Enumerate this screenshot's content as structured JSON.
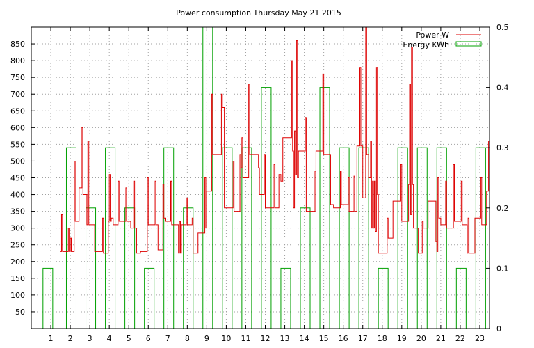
{
  "chart_data": {
    "type": "line",
    "title": "Power consumption Thursday May 21 2015",
    "x": {
      "ticks": [
        1,
        2,
        3,
        4,
        5,
        6,
        7,
        8,
        9,
        10,
        11,
        12,
        13,
        14,
        15,
        16,
        17,
        18,
        19,
        20,
        21,
        22,
        23
      ],
      "range": [
        0,
        23.5
      ]
    },
    "y_left": {
      "ticks": [
        50,
        100,
        150,
        200,
        250,
        300,
        350,
        400,
        450,
        500,
        550,
        600,
        650,
        700,
        750,
        800,
        850
      ],
      "range": [
        0,
        900
      ]
    },
    "y_right": {
      "ticks": [
        "0",
        "0.1",
        "0.2",
        "0.3",
        "0.4",
        "0.5"
      ],
      "range": [
        0,
        0.5
      ]
    },
    "grid": true,
    "legend_position": "top-right",
    "series": [
      {
        "name": "Power W",
        "color": "#dd0000",
        "axis": "left",
        "style": "steps",
        "points": [
          [
            1.5,
            230
          ],
          [
            1.55,
            340
          ],
          [
            1.6,
            230
          ],
          [
            1.85,
            230
          ],
          [
            1.9,
            300
          ],
          [
            1.95,
            230
          ],
          [
            2.0,
            270
          ],
          [
            2.05,
            230
          ],
          [
            2.15,
            230
          ],
          [
            2.2,
            500
          ],
          [
            2.25,
            320
          ],
          [
            2.4,
            320
          ],
          [
            2.45,
            420
          ],
          [
            2.55,
            420
          ],
          [
            2.6,
            600
          ],
          [
            2.65,
            400
          ],
          [
            2.8,
            400
          ],
          [
            2.85,
            310
          ],
          [
            2.9,
            560
          ],
          [
            2.95,
            310
          ],
          [
            3.2,
            310
          ],
          [
            3.25,
            230
          ],
          [
            3.6,
            230
          ],
          [
            3.65,
            330
          ],
          [
            3.7,
            225
          ],
          [
            3.9,
            225
          ],
          [
            3.95,
            320
          ],
          [
            4.0,
            460
          ],
          [
            4.05,
            320
          ],
          [
            4.1,
            330
          ],
          [
            4.2,
            310
          ],
          [
            4.4,
            310
          ],
          [
            4.45,
            440
          ],
          [
            4.5,
            320
          ],
          [
            4.8,
            320
          ],
          [
            4.85,
            420
          ],
          [
            4.9,
            320
          ],
          [
            5.0,
            320
          ],
          [
            5.1,
            300
          ],
          [
            5.2,
            300
          ],
          [
            5.25,
            440
          ],
          [
            5.3,
            300
          ],
          [
            5.4,
            225
          ],
          [
            5.5,
            225
          ],
          [
            5.6,
            230
          ],
          [
            5.9,
            230
          ],
          [
            5.95,
            450
          ],
          [
            6.0,
            310
          ],
          [
            6.3,
            310
          ],
          [
            6.35,
            440
          ],
          [
            6.4,
            310
          ],
          [
            6.5,
            235
          ],
          [
            6.6,
            235
          ],
          [
            6.7,
            235
          ],
          [
            6.75,
            430
          ],
          [
            6.8,
            330
          ],
          [
            6.9,
            320
          ],
          [
            7.1,
            320
          ],
          [
            7.15,
            440
          ],
          [
            7.2,
            310
          ],
          [
            7.5,
            310
          ],
          [
            7.55,
            225
          ],
          [
            7.6,
            320
          ],
          [
            7.65,
            225
          ],
          [
            7.7,
            310
          ],
          [
            7.9,
            310
          ],
          [
            7.95,
            390
          ],
          [
            8.0,
            310
          ],
          [
            8.2,
            310
          ],
          [
            8.25,
            330
          ],
          [
            8.3,
            225
          ],
          [
            8.5,
            225
          ],
          [
            8.55,
            285
          ],
          [
            8.85,
            285
          ],
          [
            8.9,
            450
          ],
          [
            8.95,
            300
          ],
          [
            9.0,
            410
          ],
          [
            9.2,
            410
          ],
          [
            9.25,
            700
          ],
          [
            9.3,
            520
          ],
          [
            9.7,
            520
          ],
          [
            9.75,
            700
          ],
          [
            9.8,
            660
          ],
          [
            9.9,
            360
          ],
          [
            10.3,
            360
          ],
          [
            10.35,
            500
          ],
          [
            10.4,
            350
          ],
          [
            10.65,
            350
          ],
          [
            10.7,
            520
          ],
          [
            10.75,
            480
          ],
          [
            10.8,
            570
          ],
          [
            10.85,
            450
          ],
          [
            11.1,
            450
          ],
          [
            11.15,
            730
          ],
          [
            11.2,
            520
          ],
          [
            11.6,
            520
          ],
          [
            11.65,
            480
          ],
          [
            11.7,
            400
          ],
          [
            11.9,
            400
          ],
          [
            11.95,
            520
          ],
          [
            12.0,
            360
          ],
          [
            12.4,
            360
          ],
          [
            12.45,
            490
          ],
          [
            12.5,
            360
          ],
          [
            12.65,
            360
          ],
          [
            12.7,
            460
          ],
          [
            12.8,
            440
          ],
          [
            12.9,
            570
          ],
          [
            13.3,
            570
          ],
          [
            13.35,
            800
          ],
          [
            13.4,
            530
          ],
          [
            13.45,
            360
          ],
          [
            13.5,
            590
          ],
          [
            13.55,
            460
          ],
          [
            13.6,
            860
          ],
          [
            13.65,
            450
          ],
          [
            13.7,
            530
          ],
          [
            14.0,
            530
          ],
          [
            14.05,
            630
          ],
          [
            14.1,
            350
          ],
          [
            14.5,
            350
          ],
          [
            14.55,
            470
          ],
          [
            14.6,
            530
          ],
          [
            14.9,
            530
          ],
          [
            14.95,
            760
          ],
          [
            15.0,
            520
          ],
          [
            15.3,
            520
          ],
          [
            15.35,
            370
          ],
          [
            15.5,
            360
          ],
          [
            15.8,
            360
          ],
          [
            15.85,
            470
          ],
          [
            15.9,
            370
          ],
          [
            16.2,
            370
          ],
          [
            16.25,
            450
          ],
          [
            16.3,
            350
          ],
          [
            16.5,
            350
          ],
          [
            16.55,
            455
          ],
          [
            16.6,
            350
          ],
          [
            16.7,
            545
          ],
          [
            16.8,
            545
          ],
          [
            16.85,
            780
          ],
          [
            16.9,
            545
          ],
          [
            17.0,
            390
          ],
          [
            17.1,
            390
          ],
          [
            17.15,
            900
          ],
          [
            17.2,
            520
          ],
          [
            17.3,
            450
          ],
          [
            17.4,
            560
          ],
          [
            17.45,
            300
          ],
          [
            17.5,
            440
          ],
          [
            17.55,
            300
          ],
          [
            17.6,
            440
          ],
          [
            17.65,
            290
          ],
          [
            17.7,
            780
          ],
          [
            17.75,
            400
          ],
          [
            17.8,
            225
          ],
          [
            18.2,
            225
          ],
          [
            18.25,
            330
          ],
          [
            18.3,
            270
          ],
          [
            18.5,
            270
          ],
          [
            18.55,
            380
          ],
          [
            18.9,
            380
          ],
          [
            18.95,
            490
          ],
          [
            19.0,
            320
          ],
          [
            19.3,
            320
          ],
          [
            19.35,
            430
          ],
          [
            19.4,
            730
          ],
          [
            19.45,
            340
          ],
          [
            19.5,
            840
          ],
          [
            19.55,
            430
          ],
          [
            19.6,
            300
          ],
          [
            19.8,
            300
          ],
          [
            19.85,
            225
          ],
          [
            20.0,
            225
          ],
          [
            20.05,
            320
          ],
          [
            20.1,
            300
          ],
          [
            20.3,
            300
          ],
          [
            20.35,
            380
          ],
          [
            20.7,
            380
          ],
          [
            20.75,
            260
          ],
          [
            20.8,
            230
          ],
          [
            20.85,
            450
          ],
          [
            20.9,
            330
          ],
          [
            21.0,
            310
          ],
          [
            21.2,
            310
          ],
          [
            21.25,
            440
          ],
          [
            21.3,
            300
          ],
          [
            21.6,
            300
          ],
          [
            21.65,
            490
          ],
          [
            21.7,
            320
          ],
          [
            22.0,
            320
          ],
          [
            22.05,
            440
          ],
          [
            22.1,
            310
          ],
          [
            22.3,
            310
          ],
          [
            22.35,
            225
          ],
          [
            22.4,
            330
          ],
          [
            22.45,
            225
          ],
          [
            22.7,
            225
          ],
          [
            22.75,
            330
          ],
          [
            23.0,
            330
          ],
          [
            23.05,
            450
          ],
          [
            23.1,
            310
          ],
          [
            23.3,
            310
          ],
          [
            23.35,
            410
          ],
          [
            23.45,
            560
          ],
          [
            23.5,
            400
          ]
        ]
      },
      {
        "name": "Energy KWh",
        "color": "#00a000",
        "axis": "right",
        "style": "boxes",
        "boxes": [
          [
            0.6,
            1.1,
            0.1
          ],
          [
            1.8,
            2.3,
            0.3
          ],
          [
            2.8,
            3.3,
            0.2
          ],
          [
            3.8,
            4.3,
            0.3
          ],
          [
            4.8,
            5.3,
            0.2
          ],
          [
            5.8,
            6.3,
            0.1
          ],
          [
            6.8,
            7.3,
            0.3
          ],
          [
            7.8,
            8.3,
            0.2
          ],
          [
            8.8,
            9.3,
            0.5
          ],
          [
            9.8,
            10.3,
            0.3
          ],
          [
            10.8,
            11.3,
            0.3
          ],
          [
            11.8,
            12.3,
            0.4
          ],
          [
            12.8,
            13.3,
            0.1
          ],
          [
            13.8,
            14.3,
            0.2
          ],
          [
            14.8,
            15.3,
            0.4
          ],
          [
            15.8,
            16.3,
            0.3
          ],
          [
            16.8,
            17.3,
            0.3
          ],
          [
            17.8,
            18.3,
            0.1
          ],
          [
            18.8,
            19.3,
            0.3
          ],
          [
            19.8,
            20.3,
            0.3
          ],
          [
            20.8,
            21.3,
            0.3
          ],
          [
            21.8,
            22.3,
            0.1
          ],
          [
            22.8,
            23.3,
            0.3
          ]
        ]
      }
    ]
  }
}
